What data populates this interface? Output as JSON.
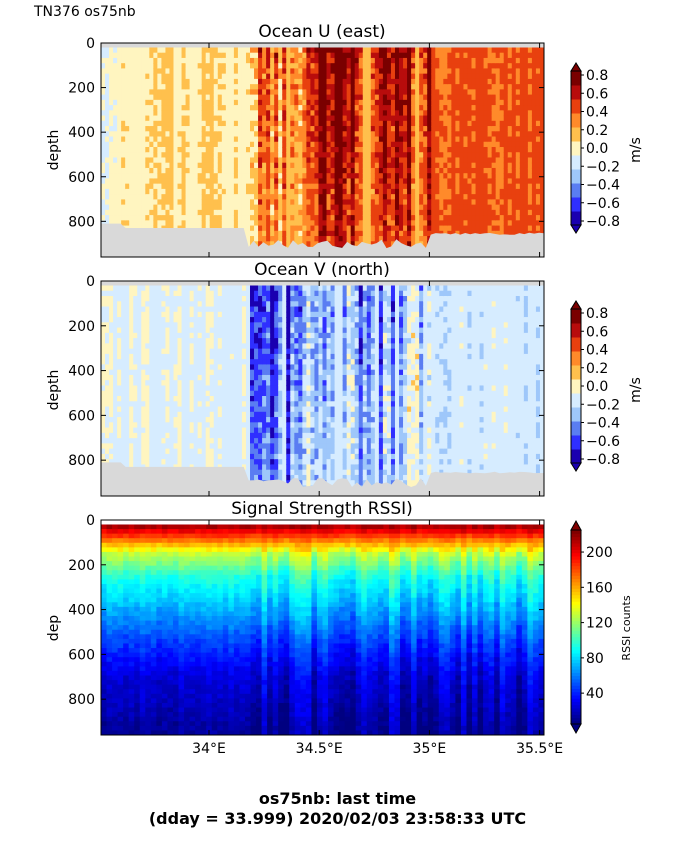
{
  "header": {
    "corner_label": "TN376 os75nb"
  },
  "footer": {
    "line1": "os75nb: last time",
    "line2": "(dday = 33.999) 2020/02/03 23:58:33 UTC"
  },
  "colors": {
    "nodata": "#d9d9d9",
    "velocity_levels": [
      "#1a00b0",
      "#2f2fff",
      "#5a7df2",
      "#9ec7fa",
      "#d6ecff",
      "#fff5c0",
      "#ffc04d",
      "#ff8a2a",
      "#e8400f",
      "#b80c0c",
      "#7a0000"
    ],
    "rssi_jet": [
      "#000080",
      "#0000ff",
      "#0080ff",
      "#00ffff",
      "#80ff80",
      "#ffff00",
      "#ff8000",
      "#ff0000",
      "#800000"
    ]
  },
  "chart_data": [
    {
      "type": "heatmap",
      "title": "Ocean U (east)",
      "xlabel": "",
      "ylabel": "depth",
      "xlim": [
        33.51,
        35.52
      ],
      "ylim": [
        960,
        0
      ],
      "yticks": [
        0,
        200,
        400,
        600,
        800
      ],
      "colorbar": {
        "label": "m/s",
        "ticks": [
          "0.8",
          "0.6",
          "0.4",
          "0.2",
          "0.0",
          "−0.2",
          "−0.4",
          "−0.6",
          "−0.8"
        ],
        "range": [
          -0.8,
          0.8
        ]
      },
      "regions": [
        {
          "x": [
            33.51,
            33.6
          ],
          "value": -0.05
        },
        {
          "x": [
            33.6,
            34.18
          ],
          "value": 0.05
        },
        {
          "x": [
            34.18,
            34.45
          ],
          "value": 0.35
        },
        {
          "x": [
            34.45,
            35.0
          ],
          "value": 0.65
        },
        {
          "x": [
            35.0,
            35.5
          ],
          "value": 0.4
        }
      ],
      "nodata_below_depth": [
        820,
        920
      ]
    },
    {
      "type": "heatmap",
      "title": "Ocean V (north)",
      "xlabel": "",
      "ylabel": "depth",
      "xlim": [
        33.51,
        35.52
      ],
      "ylim": [
        960,
        0
      ],
      "yticks": [
        0,
        200,
        400,
        600,
        800
      ],
      "colorbar": {
        "label": "m/s",
        "ticks": [
          "0.8",
          "0.6",
          "0.4",
          "0.2",
          "0.0",
          "−0.2",
          "−0.4",
          "−0.6",
          "−0.8"
        ],
        "range": [
          -0.8,
          0.8
        ]
      },
      "regions": [
        {
          "x": [
            33.51,
            34.19
          ],
          "value": -0.1
        },
        {
          "x": [
            34.19,
            34.45
          ],
          "value": -0.6
        },
        {
          "x": [
            34.45,
            34.9
          ],
          "value": -0.4
        },
        {
          "x": [
            34.9,
            35.5
          ],
          "value": -0.15
        }
      ],
      "nodata_below_depth": [
        820,
        920
      ]
    },
    {
      "type": "heatmap",
      "title": "Signal Strength RSSI)",
      "xlabel": "",
      "ylabel": "dep",
      "xlim": [
        33.51,
        35.52
      ],
      "ylim": [
        960,
        0
      ],
      "xticks": [
        "34°E",
        "34.5°E",
        "35°E",
        "35.5°E"
      ],
      "xtick_values": [
        34.0,
        34.5,
        35.0,
        35.5
      ],
      "yticks": [
        0,
        200,
        400,
        600,
        800
      ],
      "colorbar": {
        "label": "RSSI counts",
        "ticks": [
          "200",
          "160",
          "120",
          "80",
          "40"
        ],
        "range": [
          5,
          225
        ]
      },
      "profile": [
        {
          "depth": 30,
          "value": 215
        },
        {
          "depth": 80,
          "value": 180
        },
        {
          "depth": 150,
          "value": 130
        },
        {
          "depth": 250,
          "value": 95
        },
        {
          "depth": 400,
          "value": 70
        },
        {
          "depth": 550,
          "value": 45
        },
        {
          "depth": 700,
          "value": 25
        },
        {
          "depth": 950,
          "value": 10
        }
      ]
    }
  ]
}
